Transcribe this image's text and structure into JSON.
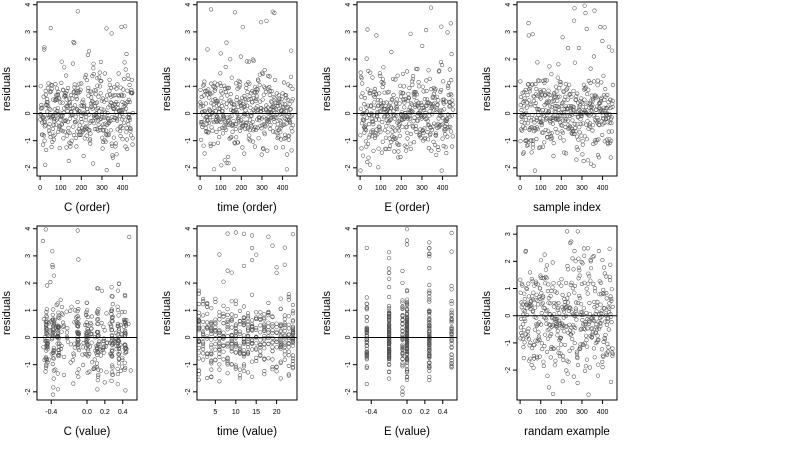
{
  "chart_data": [
    {
      "type": "scatter",
      "xlabel": "C (order)",
      "ylabel": "residuals",
      "xlim": [
        -15,
        470
      ],
      "ylim": [
        -2.3,
        4.1
      ],
      "x_ticks": [
        0,
        100,
        200,
        300,
        400
      ],
      "y_ticks": [
        -2,
        -1,
        0,
        1,
        2,
        3,
        4
      ],
      "reference_line_y": 0,
      "x_values": "sample order 1–450",
      "y_values": "residuals, about -2 to 4 (mostly -1.5 to 1.5)",
      "points_shown": "about 450"
    },
    {
      "type": "scatter",
      "xlabel": "time (order)",
      "ylabel": "residuals",
      "xlim": [
        -15,
        470
      ],
      "ylim": [
        -2.3,
        4.1
      ],
      "x_ticks": [
        0,
        100,
        200,
        300,
        400
      ],
      "y_ticks": [
        -2,
        -1,
        0,
        1,
        2,
        3,
        4
      ],
      "reference_line_y": 0,
      "x_values": "sample order 1–450",
      "y_values": "residuals, about -2 to 4 (mostly -1.5 to 1.5)",
      "points_shown": "about 450"
    },
    {
      "type": "scatter",
      "xlabel": "E (order)",
      "ylabel": "residuals",
      "xlim": [
        -15,
        470
      ],
      "ylim": [
        -2.3,
        4.1
      ],
      "x_ticks": [
        0,
        100,
        200,
        300,
        400
      ],
      "y_ticks": [
        -2,
        -1,
        0,
        1,
        2,
        3,
        4
      ],
      "reference_line_y": 0,
      "x_values": "sample order 1–450",
      "y_values": "residuals, about -2 to 4 (mostly -1.5 to 1.5)",
      "points_shown": "about 450"
    },
    {
      "type": "scatter",
      "xlabel": "sample index",
      "ylabel": "residuals",
      "xlim": [
        -15,
        470
      ],
      "ylim": [
        -2.3,
        4.1
      ],
      "x_ticks": [
        0,
        100,
        200,
        300,
        400
      ],
      "y_ticks": [
        -2,
        -1,
        0,
        1,
        2,
        3,
        4
      ],
      "reference_line_y": 0,
      "x_values": "sample order 1–450",
      "y_values": "residuals, about -2 to 4 (mostly -1.5 to 1.5)",
      "points_shown": "about 450"
    },
    {
      "type": "scatter",
      "xlabel": "C (value)",
      "ylabel": "residuals",
      "xlim": [
        -0.56,
        0.56
      ],
      "ylim": [
        -2.3,
        4.1
      ],
      "x_ticks": [
        -0.4,
        0.0,
        0.2,
        0.4
      ],
      "y_ticks": [
        -2,
        -1,
        0,
        1,
        2,
        3,
        4
      ],
      "reference_line_y": 0,
      "x_values": "C values between -0.5 and 0.5, denser columns near -0.44, -0.35, 0.0, 0.28, 0.42",
      "y_values": "residuals, about -2 to 4",
      "points_shown": "about 450"
    },
    {
      "type": "scatter",
      "xlabel": "time (value)",
      "ylabel": "residuals",
      "xlim": [
        0.5,
        25
      ],
      "ylim": [
        -2.3,
        4.1
      ],
      "x_ticks": [
        5,
        10,
        15,
        20
      ],
      "y_ticks": [
        -2,
        -1,
        0,
        1,
        2,
        3,
        4
      ],
      "reference_line_y": 0,
      "x_values": "time values 1–24 (integers)",
      "y_values": "residuals, about -2 to 4",
      "points_shown": "about 450"
    },
    {
      "type": "scatter",
      "xlabel": "E (value)",
      "ylabel": "residuals",
      "xlim": [
        -0.56,
        0.56
      ],
      "ylim": [
        -2.3,
        4.1
      ],
      "x_ticks": [
        -0.4,
        0.0,
        0.2,
        0.4
      ],
      "y_ticks": [
        -2,
        -1,
        0,
        1,
        2,
        3,
        4
      ],
      "reference_line_y": 0,
      "x_values": "E values concentrated at about -0.2, 0.0, 0.25, with a few near -0.45, -0.05, 0.5",
      "y_values": "residuals, about -2 to 4",
      "points_shown": "about 450"
    },
    {
      "type": "scatter",
      "xlabel": "randam example",
      "ylabel": "residuals",
      "xlim": [
        -15,
        470
      ],
      "ylim": [
        -3.1,
        3.3
      ],
      "x_ticks": [
        0,
        100,
        200,
        300,
        400
      ],
      "y_ticks": [
        -2,
        -1,
        0,
        1,
        2,
        3
      ],
      "reference_line_y": 0,
      "x_values": "index 1–450",
      "y_values": "random values, about -3 to 3",
      "points_shown": "about 450"
    }
  ],
  "panels": [
    {
      "xlabel": "C (order)",
      "ylabel": "residuals",
      "xtick_labels": [
        "0",
        "100",
        "200",
        "300",
        "400"
      ],
      "ytick_labels": [
        "-2",
        "-1",
        "0",
        "1",
        "2",
        "3",
        "4"
      ]
    },
    {
      "xlabel": "time (order)",
      "ylabel": "residuals",
      "xtick_labels": [
        "0",
        "100",
        "200",
        "300",
        "400"
      ],
      "ytick_labels": [
        "-2",
        "-1",
        "0",
        "1",
        "2",
        "3",
        "4"
      ]
    },
    {
      "xlabel": "E (order)",
      "ylabel": "residuals",
      "xtick_labels": [
        "0",
        "100",
        "200",
        "300",
        "400"
      ],
      "ytick_labels": [
        "-2",
        "-1",
        "0",
        "1",
        "2",
        "3",
        "4"
      ]
    },
    {
      "xlabel": "sample index",
      "ylabel": "residuals",
      "xtick_labels": [
        "0",
        "100",
        "200",
        "300",
        "400"
      ],
      "ytick_labels": [
        "-2",
        "-1",
        "0",
        "1",
        "2",
        "3",
        "4"
      ]
    },
    {
      "xlabel": "C (value)",
      "ylabel": "residuals",
      "xtick_labels": [
        "-0.4",
        "0.0",
        "0.2",
        "0.4"
      ],
      "ytick_labels": [
        "-2",
        "-1",
        "0",
        "1",
        "2",
        "3",
        "4"
      ]
    },
    {
      "xlabel": "time (value)",
      "ylabel": "residuals",
      "xtick_labels": [
        "5",
        "10",
        "15",
        "20"
      ],
      "ytick_labels": [
        "-2",
        "-1",
        "0",
        "1",
        "2",
        "3",
        "4"
      ]
    },
    {
      "xlabel": "E (value)",
      "ylabel": "residuals",
      "xtick_labels": [
        "-0.4",
        "0.0",
        "0.2",
        "0.4"
      ],
      "ytick_labels": [
        "-2",
        "-1",
        "0",
        "1",
        "2",
        "3",
        "4"
      ]
    },
    {
      "xlabel": "randam example",
      "ylabel": "residuals",
      "xtick_labels": [
        "0",
        "100",
        "200",
        "300",
        "400"
      ],
      "ytick_labels": [
        "-2",
        "-1",
        "0",
        "1",
        "2",
        "3"
      ]
    }
  ],
  "colors": {
    "points": "#555555",
    "axes": "#000000",
    "background": "#ffffff"
  }
}
